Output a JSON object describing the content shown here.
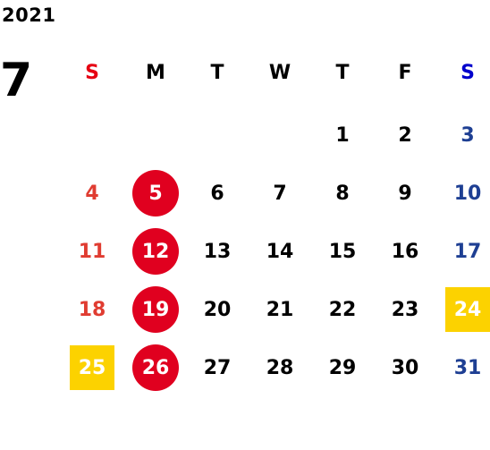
{
  "calendar": {
    "year": "2021",
    "month": "7",
    "weekdays": [
      {
        "label": "S",
        "color": "#e60012"
      },
      {
        "label": "M",
        "color": "#000000"
      },
      {
        "label": "T",
        "color": "#000000"
      },
      {
        "label": "W",
        "color": "#000000"
      },
      {
        "label": "T",
        "color": "#000000"
      },
      {
        "label": "F",
        "color": "#000000"
      },
      {
        "label": "S",
        "color": "#0000cc"
      }
    ],
    "first_weekday_index": 4,
    "days_in_month": 31,
    "sunday_color": "#e03c31",
    "saturday_color": "#1e3f93",
    "weekday_color": "#000000",
    "circle_color": "#e0001f",
    "square_color": "#fcd200",
    "highlight_text_color": "#ffffff",
    "circled_days": [
      5,
      12,
      19,
      26
    ],
    "square_days": [
      24,
      25
    ]
  }
}
